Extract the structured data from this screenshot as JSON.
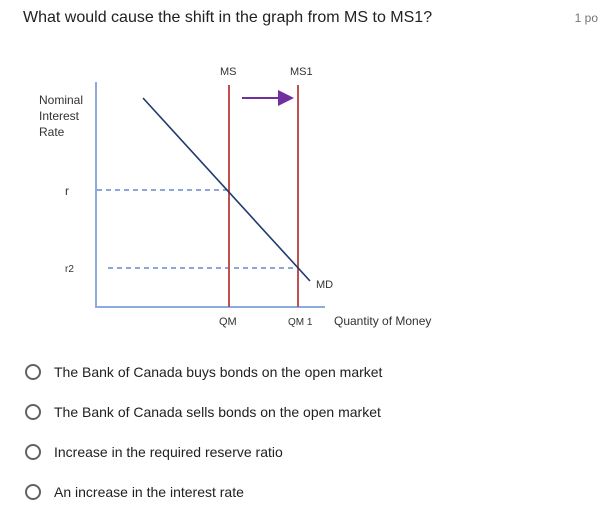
{
  "question": {
    "text": "What would cause the shift in the graph from MS to MS1?",
    "points": "1 po"
  },
  "graph": {
    "y_axis_label_lines": [
      "Nominal",
      "Interest",
      "Rate"
    ],
    "x_axis_label": "Quantity of Money",
    "ms_label": "MS",
    "ms1_label": "MS1",
    "md_label": "MD",
    "r_label": "r",
    "r2_label": "r2",
    "qm_label": "QM",
    "qm1_label": "QM 1",
    "colors": {
      "axis": "#8faadc",
      "supply": "#c0504d",
      "demand": "#1f3a6e",
      "arrow": "#7030a0",
      "dashed": "#4472c4"
    }
  },
  "options": [
    {
      "label": "The Bank of Canada buys bonds on the open market"
    },
    {
      "label": "The Bank of Canada sells bonds on the open market"
    },
    {
      "label": "Increase in the required reserve ratio"
    },
    {
      "label": "An increase in the interest rate"
    }
  ]
}
